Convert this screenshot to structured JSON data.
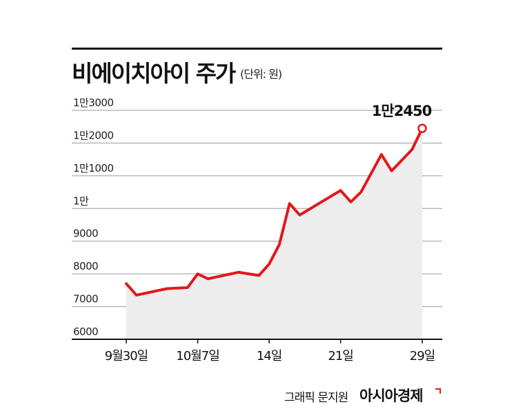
{
  "header": {
    "title": "비에이치아이 주가",
    "unit": "(단위: 원)"
  },
  "footer": {
    "credit": "그래픽 문지원",
    "brand": "아시아경제"
  },
  "colors": {
    "line": "#e3161b",
    "area": "#ededed",
    "grid": "#9a9a9a",
    "axis": "#111111"
  },
  "chart_data": {
    "type": "line",
    "title": "비에이치아이 주가",
    "unit": "(단위: 원)",
    "ylim": [
      6000,
      13000
    ],
    "y_ticks": [
      {
        "value": 13000,
        "label": "1만3000"
      },
      {
        "value": 12000,
        "label": "1만2000"
      },
      {
        "value": 11000,
        "label": "1만1000"
      },
      {
        "value": 10000,
        "label": "1만"
      },
      {
        "value": 9000,
        "label": "9000"
      },
      {
        "value": 8000,
        "label": "8000"
      },
      {
        "value": 7000,
        "label": "7000"
      },
      {
        "value": 6000,
        "label": "6000"
      }
    ],
    "x_ticks": [
      {
        "date": "2021-09-30",
        "label": "9월30일"
      },
      {
        "date": "2021-10-07",
        "label": "10월7일"
      },
      {
        "date": "2021-10-14",
        "label": "14일"
      },
      {
        "date": "2021-10-21",
        "label": "21일"
      },
      {
        "date": "2021-10-29",
        "label": "29일"
      }
    ],
    "grid": true,
    "series": [
      {
        "values": [
          {
            "x": "2021-09-30",
            "y": 7700
          },
          {
            "x": "2021-10-01",
            "y": 7350
          },
          {
            "x": "2021-10-04",
            "y": 7550
          },
          {
            "x": "2021-10-06",
            "y": 7580
          },
          {
            "x": "2021-10-07",
            "y": 8000
          },
          {
            "x": "2021-10-08",
            "y": 7850
          },
          {
            "x": "2021-10-11",
            "y": 8050
          },
          {
            "x": "2021-10-13",
            "y": 7950
          },
          {
            "x": "2021-10-14",
            "y": 8300
          },
          {
            "x": "2021-10-15",
            "y": 8900
          },
          {
            "x": "2021-10-16",
            "y": 10150
          },
          {
            "x": "2021-10-17",
            "y": 9800
          },
          {
            "x": "2021-10-21",
            "y": 10550
          },
          {
            "x": "2021-10-22",
            "y": 10200
          },
          {
            "x": "2021-10-23",
            "y": 10500
          },
          {
            "x": "2021-10-25",
            "y": 11650
          },
          {
            "x": "2021-10-26",
            "y": 11150
          },
          {
            "x": "2021-10-28",
            "y": 11800
          },
          {
            "x": "2021-10-29",
            "y": 12450
          }
        ]
      }
    ],
    "annotations": [
      {
        "x": "2021-10-29",
        "y": 12450,
        "label": "1만2450"
      }
    ]
  }
}
